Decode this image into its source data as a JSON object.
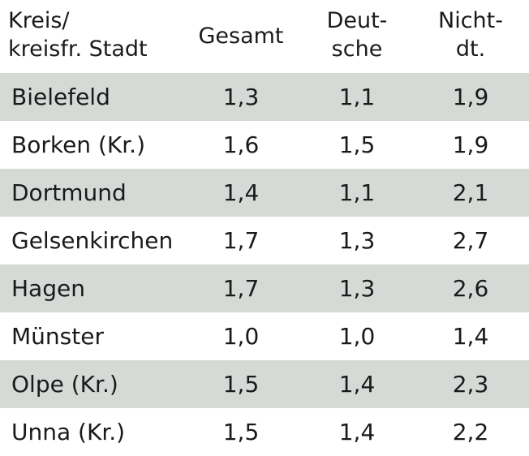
{
  "chart_data": {
    "type": "table",
    "columns": [
      "Kreis/\nkreisfr. Stadt",
      "Gesamt",
      "Deut-\nsche",
      "Nicht-\ndt."
    ],
    "rows": [
      {
        "name": "Bielefeld",
        "values": [
          "1,3",
          "1,1",
          "1,9"
        ]
      },
      {
        "name": "Borken (Kr.)",
        "values": [
          "1,6",
          "1,5",
          "1,9"
        ]
      },
      {
        "name": "Dortmund",
        "values": [
          "1,4",
          "1,1",
          "2,1"
        ]
      },
      {
        "name": "Gelsenkirchen",
        "values": [
          "1,7",
          "1,3",
          "2,7"
        ]
      },
      {
        "name": "Hagen",
        "values": [
          "1,7",
          "1,3",
          "2,6"
        ]
      },
      {
        "name": "Münster",
        "values": [
          "1,0",
          "1,0",
          "1,4"
        ]
      },
      {
        "name": "Olpe (Kr.)",
        "values": [
          "1,5",
          "1,4",
          "2,3"
        ]
      },
      {
        "name": "Unna (Kr.)",
        "values": [
          "1,5",
          "1,4",
          "2,2"
        ]
      }
    ]
  },
  "colors": {
    "shaded_row": "#d6dad7",
    "text": "#1a1a1a",
    "background": "#ffffff"
  }
}
